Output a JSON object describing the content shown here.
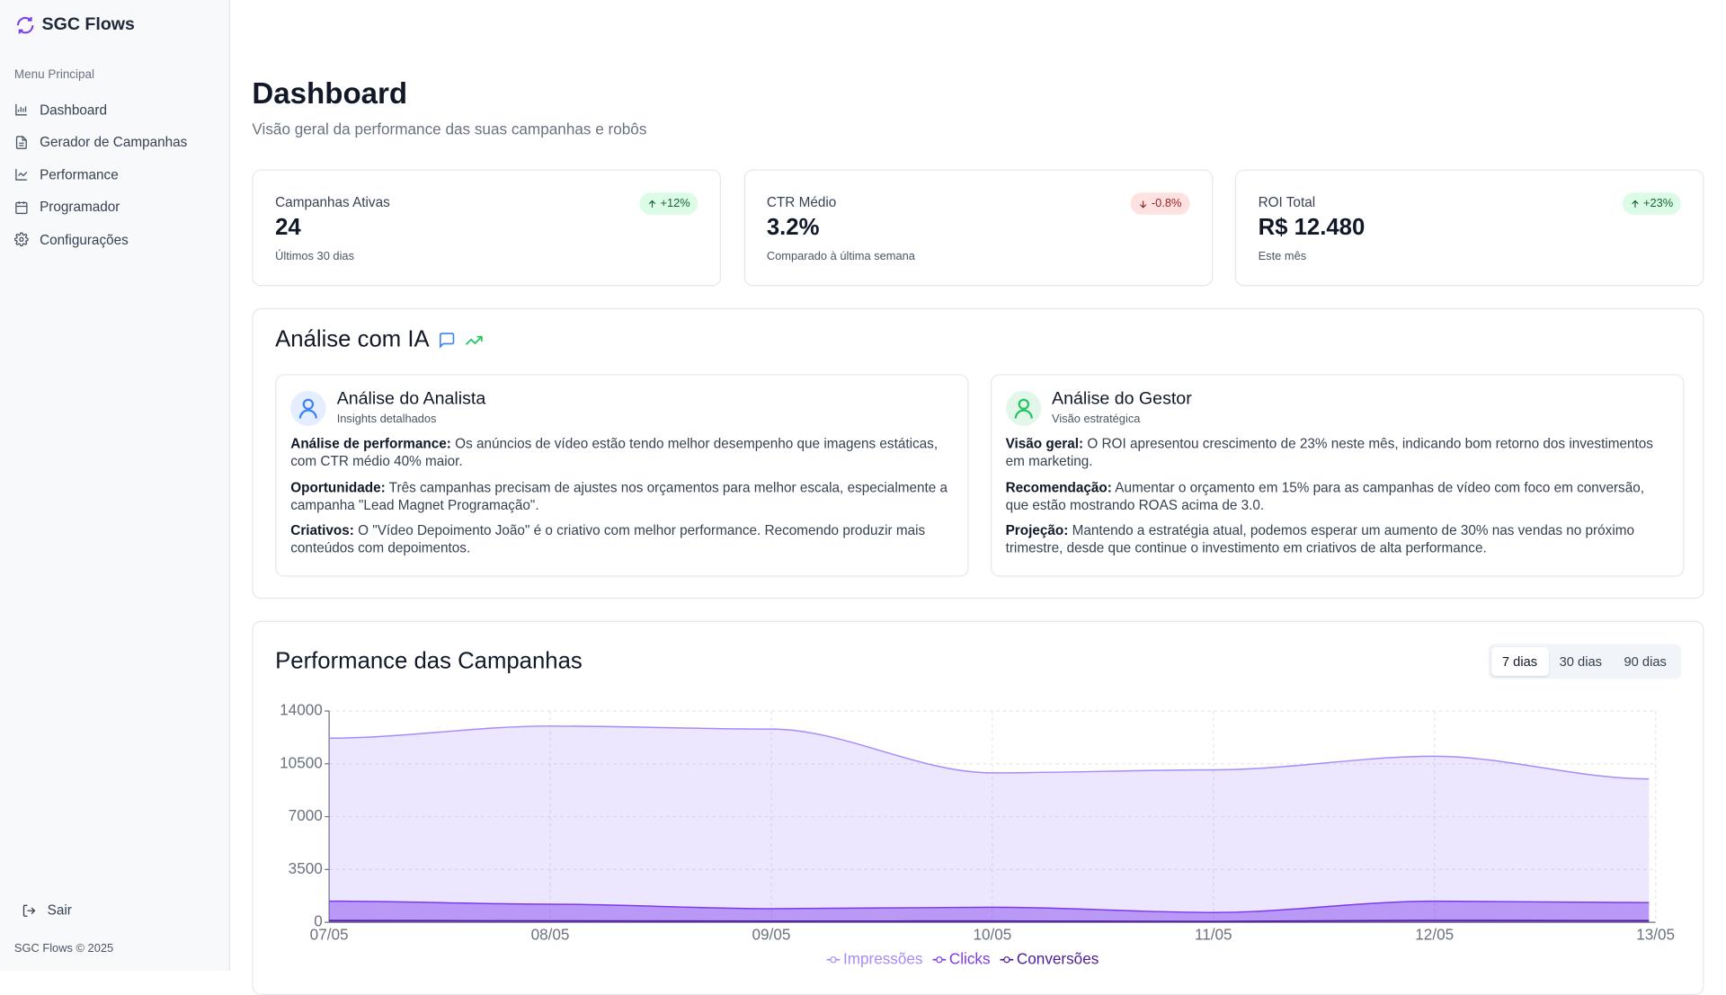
{
  "sidebar": {
    "brand": "SGC Flows",
    "menu_title": "Menu Principal",
    "items": [
      "Dashboard",
      "Gerador de Campanhas",
      "Performance",
      "Programador",
      "Configurações"
    ],
    "logout": "Sair",
    "footer": "SGC Flows © 2025"
  },
  "header": {
    "title": "Dashboard",
    "subtitle": "Visão geral da performance das suas campanhas e robôs"
  },
  "stats": [
    {
      "label": "Campanhas Ativas",
      "value": "24",
      "note": "Últimos 30 dias",
      "badge": "+12%",
      "trend": "up"
    },
    {
      "label": "CTR Médio",
      "value": "3.2%",
      "note": "Comparado à última semana",
      "badge": "-0.8%",
      "trend": "down"
    },
    {
      "label": "ROI Total",
      "value": "R$ 12.480",
      "note": "Este mês",
      "badge": "+23%",
      "trend": "up"
    }
  ],
  "analysis": {
    "title": "Análise com IA",
    "panels": [
      {
        "title": "Análise do Analista",
        "subtitle": "Insights detalhados",
        "color": "#3b82f6",
        "items": [
          {
            "label": "Análise de performance:",
            "text": "Os anúncios de vídeo estão tendo melhor desempenho que imagens estáticas, com CTR médio 40% maior."
          },
          {
            "label": "Oportunidade:",
            "text": "Três campanhas precisam de ajustes nos orçamentos para melhor escala, especialmente a campanha \"Lead Magnet Programação\"."
          },
          {
            "label": "Criativos:",
            "text": "O \"Vídeo Depoimento João\" é o criativo com melhor performance. Recomendo produzir mais conteúdos com depoimentos."
          }
        ]
      },
      {
        "title": "Análise do Gestor",
        "subtitle": "Visão estratégica",
        "color": "#22c55e",
        "items": [
          {
            "label": "Visão geral:",
            "text": "O ROI apresentou crescimento de 23% neste mês, indicando bom retorno dos investimentos em marketing."
          },
          {
            "label": "Recomendação:",
            "text": "Aumentar o orçamento em 15% para as campanhas de vídeo com foco em conversão, que estão mostrando ROAS acima de 3.0."
          },
          {
            "label": "Projeção:",
            "text": "Mantendo a estratégia atual, podemos esperar um aumento de 30% nas vendas no próximo trimestre, desde que continue o investimento em criativos de alta performance."
          }
        ]
      }
    ]
  },
  "performance": {
    "ranges": [
      "7 dias",
      "30 dias",
      "90 dias"
    ]
  },
  "chart_data": {
    "type": "area",
    "title": "Performance das Campanhas",
    "categories": [
      "07/05",
      "08/05",
      "09/05",
      "10/05",
      "11/05",
      "12/05",
      "13/05"
    ],
    "series": [
      {
        "name": "Impressões",
        "color": "#a78bfa",
        "values": [
          12200,
          13000,
          12800,
          9900,
          10100,
          11000,
          9500
        ]
      },
      {
        "name": "Clicks",
        "color": "#7c3aed",
        "values": [
          1400,
          1200,
          900,
          1000,
          650,
          1400,
          1300
        ]
      },
      {
        "name": "Conversões",
        "color": "#4c1d95",
        "values": [
          120,
          100,
          80,
          90,
          60,
          130,
          110
        ]
      }
    ],
    "ylim": [
      0,
      14000
    ],
    "yticks": [
      0,
      3500,
      7000,
      10500,
      14000
    ],
    "grid": true
  }
}
